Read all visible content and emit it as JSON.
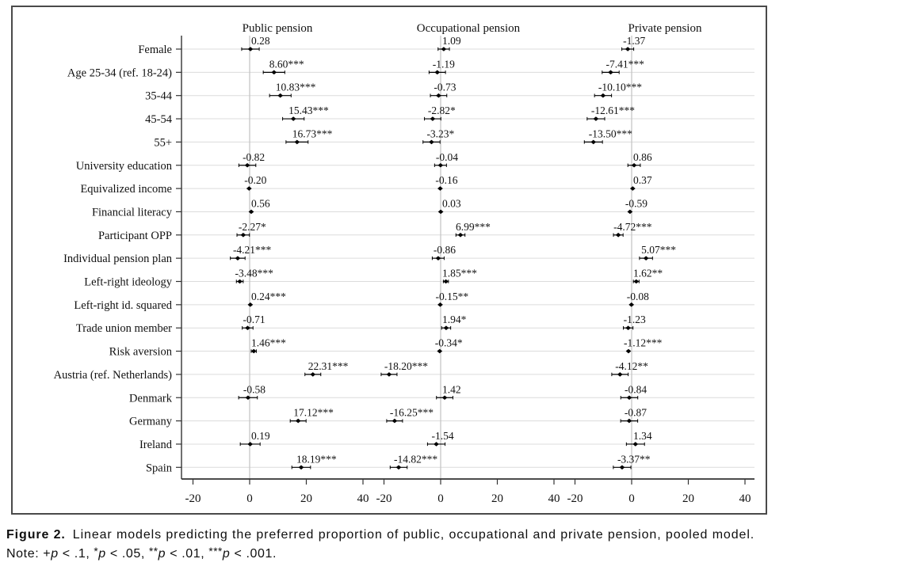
{
  "figure": {
    "caption_label": "Figure 2.",
    "caption_text": "Linear models predicting the preferred proportion of public, occupational and private pension, pooled model.",
    "note_text": "Note: +p < .1, *p < .05, **p < .01, ***p < .001.",
    "note_segments": [
      {
        "t": "Note: "
      },
      {
        "t": "+"
      },
      {
        "t": "p",
        "i": true
      },
      {
        "t": " < .1, "
      },
      {
        "t": "*",
        "s": true
      },
      {
        "t": "p",
        "i": true
      },
      {
        "t": " < .05, "
      },
      {
        "t": "**",
        "s": true
      },
      {
        "t": "p",
        "i": true
      },
      {
        "t": " < .01, "
      },
      {
        "t": "***",
        "s": true
      },
      {
        "t": "p",
        "i": true
      },
      {
        "t": " < .001."
      }
    ]
  },
  "chart_data": {
    "type": "scatter",
    "variant": "coefficient-dot-whisker-forest-plot",
    "title": "",
    "grid": true,
    "legend": false,
    "x_ticks": [
      -20,
      0,
      20,
      40
    ],
    "x_range": [
      -24,
      44
    ],
    "significance_legend": "+p < .1, *p < .05, **p < .01, ***p < .001",
    "categories": [
      "Female",
      "Age 25-34 (ref. 18-24)",
      "35-44",
      "45-54",
      "55+",
      "University education",
      "Equivalized income",
      "Financial literacy",
      "Participant OPP",
      "Individual pension plan",
      "Left-right ideology",
      "Left-right id. squared",
      "Trade union member",
      "Risk aversion",
      "Austria (ref. Netherlands)",
      "Denmark",
      "Germany",
      "Ireland",
      "Spain"
    ],
    "panels": [
      {
        "name": "Public pension",
        "points": [
          {
            "value": 0.28,
            "ci": 3.1,
            "label": "0.28"
          },
          {
            "value": 8.6,
            "ci": 3.8,
            "label": "8.60***"
          },
          {
            "value": 10.83,
            "ci": 3.8,
            "label": "10.83***"
          },
          {
            "value": 15.43,
            "ci": 3.8,
            "label": "15.43***"
          },
          {
            "value": 16.73,
            "ci": 3.9,
            "label": "16.73***"
          },
          {
            "value": -0.82,
            "ci": 3.0,
            "label": "-0.82"
          },
          {
            "value": -0.2,
            "ci": 0.6,
            "label": "-0.20"
          },
          {
            "value": 0.56,
            "ci": 0.6,
            "label": "0.56"
          },
          {
            "value": -2.27,
            "ci": 2.2,
            "label": "-2.27*"
          },
          {
            "value": -4.21,
            "ci": 2.6,
            "label": "-4.21***"
          },
          {
            "value": -3.48,
            "ci": 1.2,
            "label": "-3.48***"
          },
          {
            "value": 0.24,
            "ci": 0.3,
            "label": "0.24***"
          },
          {
            "value": -0.71,
            "ci": 1.9,
            "label": "-0.71"
          },
          {
            "value": 1.46,
            "ci": 0.9,
            "label": "1.46***"
          },
          {
            "value": 22.31,
            "ci": 2.8,
            "label": "22.31***"
          },
          {
            "value": -0.58,
            "ci": 3.3,
            "label": "-0.58"
          },
          {
            "value": 17.12,
            "ci": 2.8,
            "label": "17.12***"
          },
          {
            "value": 0.19,
            "ci": 3.5,
            "label": "0.19"
          },
          {
            "value": 18.19,
            "ci": 3.3,
            "label": "18.19***"
          }
        ]
      },
      {
        "name": "Occupational pension",
        "points": [
          {
            "value": 1.09,
            "ci": 2.0,
            "label": "1.09"
          },
          {
            "value": -1.19,
            "ci": 2.9,
            "label": "-1.19"
          },
          {
            "value": -0.73,
            "ci": 2.9,
            "label": "-0.73"
          },
          {
            "value": -2.82,
            "ci": 2.9,
            "label": "-2.82*"
          },
          {
            "value": -3.23,
            "ci": 3.0,
            "label": "-3.23*"
          },
          {
            "value": -0.04,
            "ci": 2.1,
            "label": "-0.04"
          },
          {
            "value": -0.16,
            "ci": 0.6,
            "label": "-0.16"
          },
          {
            "value": 0.03,
            "ci": 0.6,
            "label": "0.03"
          },
          {
            "value": 6.99,
            "ci": 1.6,
            "label": "6.99***"
          },
          {
            "value": -0.86,
            "ci": 2.1,
            "label": "-0.86"
          },
          {
            "value": 1.85,
            "ci": 0.9,
            "label": "1.85***"
          },
          {
            "value": -0.15,
            "ci": 0.12,
            "label": "-0.15**"
          },
          {
            "value": 1.94,
            "ci": 1.6,
            "label": "1.94*"
          },
          {
            "value": -0.34,
            "ci": 0.3,
            "label": "-0.34*"
          },
          {
            "value": -18.2,
            "ci": 2.8,
            "label": "-18.20***"
          },
          {
            "value": 1.42,
            "ci": 2.9,
            "label": "1.42"
          },
          {
            "value": -16.25,
            "ci": 2.8,
            "label": "-16.25***"
          },
          {
            "value": -1.54,
            "ci": 3.1,
            "label": "-1.54"
          },
          {
            "value": -14.82,
            "ci": 3.0,
            "label": "-14.82***"
          }
        ]
      },
      {
        "name": "Private pension",
        "points": [
          {
            "value": -1.37,
            "ci": 2.1,
            "label": "-1.37"
          },
          {
            "value": -7.41,
            "ci": 3.0,
            "label": "-7.41***"
          },
          {
            "value": -10.1,
            "ci": 3.0,
            "label": "-10.10***"
          },
          {
            "value": -12.61,
            "ci": 3.1,
            "label": "-12.61***"
          },
          {
            "value": -13.5,
            "ci": 3.2,
            "label": "-13.50***"
          },
          {
            "value": 0.86,
            "ci": 2.2,
            "label": "0.86"
          },
          {
            "value": 0.37,
            "ci": 0.6,
            "label": "0.37"
          },
          {
            "value": -0.59,
            "ci": 0.6,
            "label": "-0.59"
          },
          {
            "value": -4.72,
            "ci": 1.7,
            "label": "-4.72***"
          },
          {
            "value": 5.07,
            "ci": 2.3,
            "label": "5.07***"
          },
          {
            "value": 1.62,
            "ci": 1.0,
            "label": "1.62**"
          },
          {
            "value": -0.08,
            "ci": 0.3,
            "label": "-0.08"
          },
          {
            "value": -1.23,
            "ci": 1.7,
            "label": "-1.23"
          },
          {
            "value": -1.12,
            "ci": 0.5,
            "label": "-1.12***"
          },
          {
            "value": -4.12,
            "ci": 2.9,
            "label": "-4.12**"
          },
          {
            "value": -0.84,
            "ci": 3.0,
            "label": "-0.84"
          },
          {
            "value": -0.87,
            "ci": 3.0,
            "label": "-0.87"
          },
          {
            "value": 1.34,
            "ci": 3.2,
            "label": "1.34"
          },
          {
            "value": -3.37,
            "ci": 3.1,
            "label": "-3.37**"
          }
        ]
      }
    ],
    "colors": {
      "marker": "#000000",
      "text": "#111111",
      "gridline": "#dcdcdc",
      "zero_line": "#c2c2c2",
      "axis": "#333333",
      "border": "#4a4a4a"
    }
  }
}
